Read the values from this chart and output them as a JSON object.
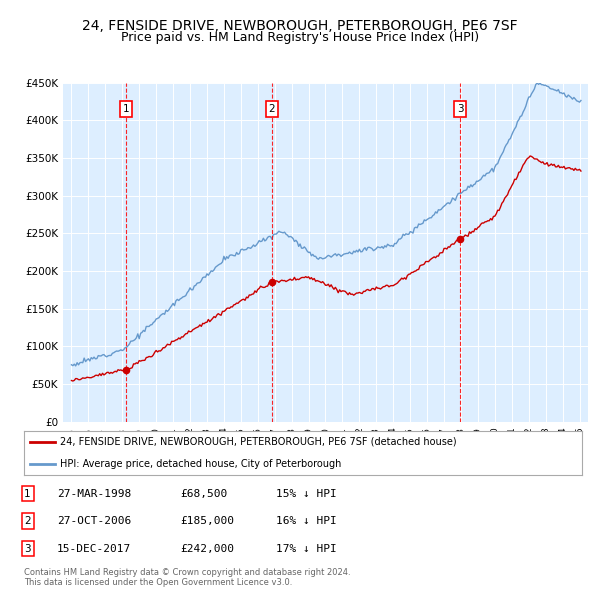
{
  "title": "24, FENSIDE DRIVE, NEWBOROUGH, PETERBOROUGH, PE6 7SF",
  "subtitle": "Price paid vs. HM Land Registry's House Price Index (HPI)",
  "background_color": "#ffffff",
  "plot_bg_color": "#ddeeff",
  "title_fontsize": 10,
  "subtitle_fontsize": 9,
  "purchases": [
    {
      "date_num": 1998.24,
      "price": 68500,
      "label": "1",
      "date_str": "27-MAR-1998",
      "pct": "15% ↓ HPI"
    },
    {
      "date_num": 2006.82,
      "price": 185000,
      "label": "2",
      "date_str": "27-OCT-2006",
      "pct": "16% ↓ HPI"
    },
    {
      "date_num": 2017.96,
      "price": 242000,
      "label": "3",
      "date_str": "15-DEC-2017",
      "pct": "17% ↓ HPI"
    }
  ],
  "ylabel_ticks": [
    "£0",
    "£50K",
    "£100K",
    "£150K",
    "£200K",
    "£250K",
    "£300K",
    "£350K",
    "£400K",
    "£450K"
  ],
  "ytick_values": [
    0,
    50000,
    100000,
    150000,
    200000,
    250000,
    300000,
    350000,
    400000,
    450000
  ],
  "xmin": 1994.5,
  "xmax": 2025.5,
  "ymin": 0,
  "ymax": 450000,
  "legend_label_red": "24, FENSIDE DRIVE, NEWBOROUGH, PETERBOROUGH, PE6 7SF (detached house)",
  "legend_label_blue": "HPI: Average price, detached house, City of Peterborough",
  "footer": "Contains HM Land Registry data © Crown copyright and database right 2024.\nThis data is licensed under the Open Government Licence v3.0.",
  "red_color": "#cc0000",
  "blue_color": "#6699cc"
}
